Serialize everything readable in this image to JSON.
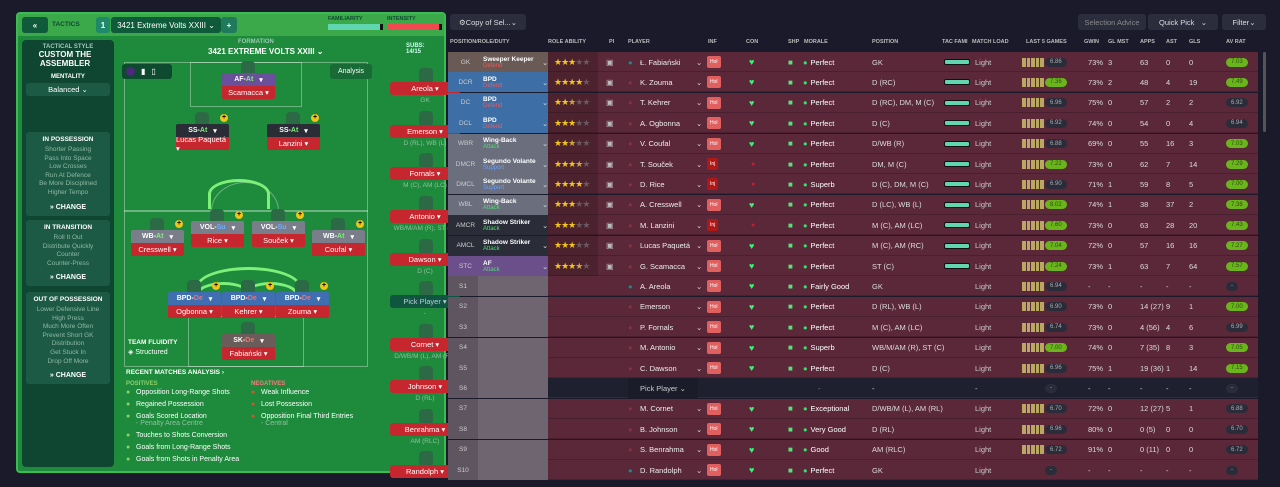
{
  "header": {
    "back_icon": "double-chevron-left",
    "tactics_label": "TACTICS",
    "slot": "1",
    "tactic_name": "3421 Extreme Volts XXIII",
    "add": "+",
    "familiarity_label": "FAMILIARITY",
    "intensity_label": "INTENSITY",
    "familiarity": 0.95,
    "intensity": 0.95
  },
  "sidebar": {
    "style_label": "TACTICAL STYLE",
    "style": "CUSTOM THE ASSEMBLER",
    "mentality_label": "MENTALITY",
    "mentality": "Balanced",
    "in_possession": {
      "title": "IN POSSESSION",
      "items": [
        "Shorter Passing",
        "Pass Into Space",
        "Low Crosses",
        "Run At Defence",
        "Be More Disciplined",
        "Higher Tempo"
      ],
      "change": "CHANGE"
    },
    "in_transition": {
      "title": "IN TRANSITION",
      "items": [
        "Roll It Out",
        "Distribute Quickly",
        "Counter",
        "Counter-Press"
      ],
      "change": "CHANGE"
    },
    "out_of_possession": {
      "title": "OUT OF POSSESSION",
      "items": [
        "Lower Defensive Line",
        "High Press",
        "Much More Often",
        "Prevent Short GK",
        "Distribution",
        "Get Stuck In",
        "Drop Off More"
      ],
      "change": "CHANGE"
    }
  },
  "pitch": {
    "formation_label": "FORMATION",
    "formation": "3421 EXTREME VOLTS XXIII",
    "subs_label": "SUBS:",
    "subs": "14/15",
    "analysis": "Analysis",
    "fluidity_label": "TEAM FLUIDITY",
    "fluidity": "Structured",
    "players": [
      {
        "role": "AF",
        "duty": "At",
        "name": "Scamacca",
        "color": "#6a4f9a"
      },
      {
        "role": "SS",
        "duty": "At",
        "name": "Lucas Paquetá",
        "color": "#2a2c36"
      },
      {
        "role": "SS",
        "duty": "At",
        "name": "Lanzini",
        "color": "#2a2c36"
      },
      {
        "role": "WB",
        "duty": "At",
        "name": "Cresswell",
        "color": "#7a7d8a"
      },
      {
        "role": "VOL",
        "duty": "Su",
        "name": "Rice",
        "color": "#7a7d8a"
      },
      {
        "role": "VOL",
        "duty": "Su",
        "name": "Souček",
        "color": "#7a7d8a"
      },
      {
        "role": "WB",
        "duty": "At",
        "name": "Coufal",
        "color": "#7a7d8a"
      },
      {
        "role": "BPD",
        "duty": "De",
        "name": "Ogbonna",
        "color": "#3f6fb0"
      },
      {
        "role": "BPD",
        "duty": "De",
        "name": "Kehrer",
        "color": "#3f6fb0"
      },
      {
        "role": "BPD",
        "duty": "De",
        "name": "Zouma",
        "color": "#3f6fb0"
      },
      {
        "role": "SK",
        "duty": "De",
        "name": "Fabiański",
        "color": "#6a5c58"
      }
    ],
    "subs_list": [
      {
        "name": "Areola",
        "pos": "GK"
      },
      {
        "name": "Emerson",
        "pos": "D (RL), WB (L)"
      },
      {
        "name": "Fornals",
        "pos": "M (C), AM (LC)"
      },
      {
        "name": "Antonio",
        "pos": "WB/M/AM (R), ST (C)"
      },
      {
        "name": "Dawson",
        "pos": "D (C)"
      },
      {
        "name": "Pick Player",
        "pos": "-"
      },
      {
        "name": "Cornet",
        "pos": "D/WB/M (L), AM (RL)"
      },
      {
        "name": "Johnson",
        "pos": "D (RL)"
      },
      {
        "name": "Benrahma",
        "pos": "AM (RLC)"
      },
      {
        "name": "Randolph",
        "pos": ""
      }
    ]
  },
  "analysis": {
    "title": "RECENT MATCHES ANALYSIS ›",
    "positives_label": "POSITIVES",
    "negatives_label": "NEGATIVES",
    "positives": [
      {
        "t": "Opposition Long-Range Shots"
      },
      {
        "t": "Regained Possession"
      },
      {
        "t": "Goals Scored Location",
        "s": "- Penalty Area Centre"
      },
      {
        "t": "Touches to Shots Conversion"
      },
      {
        "t": "Goals from Long-Range Shots"
      },
      {
        "t": "Goals from Shots in Penalty Area"
      }
    ],
    "negatives": [
      {
        "t": "Weak Influence"
      },
      {
        "t": "Lost Possession"
      },
      {
        "t": "Opposition Final Third Entries",
        "s": "- Central"
      }
    ]
  },
  "toolbar": {
    "copy": "Copy of Sel...",
    "selection_advice": "Selection Advice",
    "quick_pick": "Quick Pick",
    "filter": "Filter"
  },
  "columns": [
    "POSITION/ROLE/DUTY",
    "ROLE ABILITY",
    "PI",
    "PLAYER",
    "INF",
    "CON",
    "SHP",
    "MORALE",
    "POSITION",
    "TAC FAMI",
    "MATCH LOAD",
    "LAST 5 GAMES",
    "GWIN",
    "GL MST",
    "APPS",
    "AST",
    "GLS",
    "AV RAT"
  ],
  "rows": [
    {
      "pos": "GK",
      "role": "Sweeper Keeper",
      "duty": "Defend",
      "rc": "#6a5a55",
      "stars": 3,
      "player": "Ł. Fabiański",
      "inf": "Hol",
      "con": "ok",
      "morale": "Perfect",
      "position": "GK",
      "load": "Light",
      "form": "6.86",
      "gwin": "73%",
      "glmst": "3",
      "apps": "63",
      "ast": "0",
      "gls": "0",
      "av": "7.03"
    },
    {
      "pos": "DCR",
      "role": "BPD",
      "duty": "Defend",
      "rc": "#3d6ea5",
      "stars": 4,
      "player": "K. Zouma",
      "inf": "Hol",
      "con": "ok",
      "morale": "Perfect",
      "position": "D (RC)",
      "load": "Light",
      "form": "7.36",
      "gwin": "73%",
      "glmst": "2",
      "apps": "48",
      "ast": "4",
      "gls": "19",
      "av": "7.49"
    },
    {
      "pos": "DC",
      "role": "BPD",
      "duty": "Defend",
      "rc": "#3d6ea5",
      "stars": 2.5,
      "player": "T. Kehrer",
      "inf": "Hol",
      "con": "ok",
      "morale": "Perfect",
      "position": "D (RC), DM, M (C)",
      "load": "Light",
      "form": "6.96",
      "gwin": "75%",
      "glmst": "0",
      "apps": "57",
      "ast": "2",
      "gls": "2",
      "av": "6.92"
    },
    {
      "pos": "DCL",
      "role": "BPD",
      "duty": "Defend",
      "rc": "#3d6ea5",
      "stars": 3,
      "player": "A. Ogbonna",
      "inf": "Hol",
      "con": "ok",
      "morale": "Perfect",
      "position": "D (C)",
      "load": "Light",
      "form": "6.92",
      "gwin": "74%",
      "glmst": "0",
      "apps": "54",
      "ast": "0",
      "gls": "4",
      "av": "6.94"
    },
    {
      "pos": "WBR",
      "role": "Wing-Back",
      "duty": "Attack",
      "rc": "#6b6e7c",
      "stars": 2.5,
      "player": "V. Coufal",
      "inf": "Hol",
      "con": "ok",
      "morale": "Perfect",
      "position": "D/WB (R)",
      "load": "Light",
      "form": "6.88",
      "gwin": "69%",
      "glmst": "0",
      "apps": "55",
      "ast": "16",
      "gls": "3",
      "av": "7.03"
    },
    {
      "pos": "DMCR",
      "role": "Segundo Volante",
      "duty": "Support",
      "rc": "#6b6e7c",
      "stars": 3.5,
      "player": "T. Souček",
      "inf": "Inj",
      "con": "dot",
      "morale": "Perfect",
      "position": "DM, M (C)",
      "load": "Light",
      "form": "7.22",
      "gwin": "73%",
      "glmst": "0",
      "apps": "62",
      "ast": "7",
      "gls": "14",
      "av": "7.29"
    },
    {
      "pos": "DMCL",
      "role": "Segundo Volante",
      "duty": "Support",
      "rc": "#6b6e7c",
      "stars": 4,
      "player": "D. Rice",
      "inf": "Inj",
      "con": "dot",
      "morale": "Superb",
      "position": "D (C), DM, M (C)",
      "load": "Light",
      "form": "6.90",
      "gwin": "71%",
      "glmst": "1",
      "apps": "59",
      "ast": "8",
      "gls": "5",
      "av": "7.00"
    },
    {
      "pos": "WBL",
      "role": "Wing-Back",
      "duty": "Attack",
      "rc": "#6b6e7c",
      "stars": 3,
      "player": "A. Cresswell",
      "inf": "Hol",
      "con": "ok",
      "morale": "Perfect",
      "position": "D (LC), WB (L)",
      "load": "Light",
      "form": "8.02",
      "gwin": "74%",
      "glmst": "1",
      "apps": "38",
      "ast": "37",
      "gls": "2",
      "av": "7.38"
    },
    {
      "pos": "AMCR",
      "role": "Shadow Striker",
      "duty": "Attack",
      "rc": "#2a2c38",
      "stars": 3,
      "player": "M. Lanzini",
      "inf": "Inj",
      "con": "dot",
      "morale": "Perfect",
      "position": "M (C), AM (LC)",
      "load": "Light",
      "form": "7.60",
      "gwin": "73%",
      "glmst": "0",
      "apps": "63",
      "ast": "28",
      "gls": "20",
      "av": "7.43"
    },
    {
      "pos": "AMCL",
      "role": "Shadow Striker",
      "duty": "Attack",
      "rc": "#2a2c38",
      "stars": 3,
      "player": "Lucas Paquetá",
      "inf": "Hol",
      "con": "ok",
      "morale": "Perfect",
      "position": "M (C), AM (RC)",
      "load": "Light",
      "form": "7.04",
      "gwin": "72%",
      "glmst": "0",
      "apps": "57",
      "ast": "16",
      "gls": "16",
      "av": "7.27"
    },
    {
      "pos": "STC",
      "role": "AF",
      "duty": "Attack",
      "rc": "#6b4f8a",
      "stars": 3.5,
      "player": "G. Scamacca",
      "inf": "Hol",
      "con": "ok",
      "morale": "Perfect",
      "position": "ST (C)",
      "load": "Light",
      "form": "7.24",
      "gwin": "73%",
      "glmst": "1",
      "apps": "63",
      "ast": "7",
      "gls": "64",
      "av": "7.57"
    },
    {
      "pos": "S1",
      "player": "A. Areola",
      "inf": "Hol",
      "con": "ok",
      "morale": "Fairly Good",
      "position": "GK",
      "load": "Light",
      "form": "6.94",
      "gwin": "-",
      "glmst": "-",
      "apps": "-",
      "ast": "-",
      "gls": "-",
      "av": "-"
    },
    {
      "pos": "S2",
      "player": "Emerson",
      "inf": "Hol",
      "con": "ok",
      "morale": "Perfect",
      "position": "D (RL), WB (L)",
      "load": "Light",
      "form": "6.90",
      "gwin": "73%",
      "glmst": "0",
      "apps": "14 (27)",
      "ast": "9",
      "gls": "1",
      "av": "7.00"
    },
    {
      "pos": "S3",
      "player": "P. Fornals",
      "inf": "Hol",
      "con": "ok",
      "morale": "Perfect",
      "position": "M (C), AM (LC)",
      "load": "Light",
      "form": "6.74",
      "gwin": "73%",
      "glmst": "0",
      "apps": "4 (56)",
      "ast": "4",
      "gls": "6",
      "av": "6.99"
    },
    {
      "pos": "S4",
      "player": "M. Antonio",
      "inf": "Hol",
      "con": "ok",
      "morale": "Superb",
      "position": "WB/M/AM (R), ST (C)",
      "load": "Light",
      "form": "7.00",
      "gwin": "74%",
      "glmst": "0",
      "apps": "7 (35)",
      "ast": "8",
      "gls": "3",
      "av": "7.05"
    },
    {
      "pos": "S5",
      "player": "C. Dawson",
      "inf": "Hol",
      "con": "ok",
      "morale": "Perfect",
      "position": "D (C)",
      "load": "Light",
      "form": "6.96",
      "gwin": "75%",
      "glmst": "1",
      "apps": "19 (36)",
      "ast": "1",
      "gls": "14",
      "av": "7.15"
    },
    {
      "pos": "S6",
      "player": "Pick Player",
      "empty": true,
      "morale": "-",
      "position": "-",
      "load": "-",
      "form": "-",
      "gwin": "-",
      "glmst": "-",
      "apps": "-",
      "ast": "-",
      "gls": "-",
      "av": "-"
    },
    {
      "pos": "S7",
      "player": "M. Cornet",
      "inf": "Hol",
      "con": "ok",
      "morale": "Exceptional",
      "position": "D/WB/M (L), AM (RL)",
      "load": "Light",
      "form": "6.70",
      "gwin": "72%",
      "glmst": "0",
      "apps": "12 (27)",
      "ast": "5",
      "gls": "1",
      "av": "6.88"
    },
    {
      "pos": "S8",
      "player": "B. Johnson",
      "inf": "Hol",
      "con": "ok",
      "morale": "Very Good",
      "position": "D (RL)",
      "load": "Light",
      "form": "6.96",
      "gwin": "80%",
      "glmst": "0",
      "apps": "0 (5)",
      "ast": "0",
      "gls": "0",
      "av": "6.70"
    },
    {
      "pos": "S9",
      "player": "S. Benrahma",
      "inf": "Hol",
      "con": "ok",
      "morale": "Good",
      "position": "AM (RLC)",
      "load": "Light",
      "form": "6.72",
      "gwin": "91%",
      "glmst": "0",
      "apps": "0 (11)",
      "ast": "0",
      "gls": "0",
      "av": "6.72"
    },
    {
      "pos": "S10",
      "player": "D. Randolph",
      "inf": "Hol",
      "con": "ok",
      "morale": "Perfect",
      "position": "GK",
      "load": "Light",
      "form": "-",
      "gwin": "-",
      "glmst": "-",
      "apps": "-",
      "ast": "-",
      "gls": "-",
      "av": "-"
    }
  ]
}
